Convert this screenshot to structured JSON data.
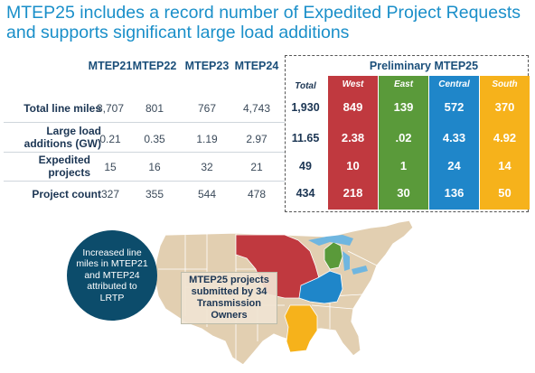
{
  "title": "MTEP25 includes a record number of Expedited Project Requests and supports significant large load additions",
  "years": [
    "MTEP21",
    "MTEP22",
    "MTEP23",
    "MTEP24"
  ],
  "preliminary_label": "Preliminary MTEP25",
  "total_label": "Total",
  "regions": [
    {
      "name": "West",
      "color": "#c0393f"
    },
    {
      "name": "East",
      "color": "#5a9a3a"
    },
    {
      "name": "Central",
      "color": "#1f86c9"
    },
    {
      "name": "South",
      "color": "#f6b21b"
    }
  ],
  "rows": [
    {
      "label": "Total line miles",
      "years": [
        "3,707",
        "801",
        "767",
        "4,743"
      ],
      "total": "1,930",
      "regions": [
        "849",
        "139",
        "572",
        "370"
      ]
    },
    {
      "label": "Large load additions (GW)",
      "years": [
        "0.21",
        "0.35",
        "1.19",
        "2.97"
      ],
      "total": "11.65",
      "regions": [
        "2.38",
        ".02",
        "4.33",
        "4.92"
      ]
    },
    {
      "label": "Expedited projects",
      "years": [
        "15",
        "16",
        "32",
        "21"
      ],
      "total": "49",
      "regions": [
        "10",
        "1",
        "24",
        "14"
      ]
    },
    {
      "label": "Project count",
      "years": [
        "327",
        "355",
        "544",
        "478"
      ],
      "total": "434",
      "regions": [
        "218",
        "30",
        "136",
        "50"
      ]
    }
  ],
  "callout": "Increased line miles in MTEP21 and MTEP24 attributed to LRTP",
  "map_label": "MTEP25 projects submitted by 34 Transmission Owners",
  "map_colors": {
    "land": "#e2cfb1",
    "border": "#ffffff",
    "west": "#c0393f",
    "east": "#5a9a3a",
    "central": "#1f86c9",
    "south": "#f6b21b",
    "lakes": "#6fb6e0"
  }
}
